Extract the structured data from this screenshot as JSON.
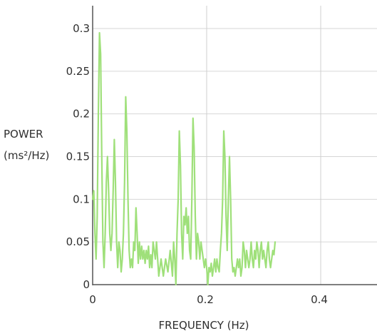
{
  "chart_data": {
    "type": "line",
    "title": "",
    "xlabel": "FREQUENCY (Hz)",
    "ylabel_line1": "POWER",
    "ylabel_line2": "(ms²/Hz)",
    "xlim": [
      0,
      0.5
    ],
    "ylim": [
      0,
      0.3
    ],
    "x_ticks": [
      {
        "value": 0,
        "label": "0"
      },
      {
        "value": 0.2,
        "label": "0.2"
      },
      {
        "value": 0.4,
        "label": "0.4"
      }
    ],
    "y_ticks": [
      {
        "value": 0,
        "label": "0"
      },
      {
        "value": 0.05,
        "label": "0.05"
      },
      {
        "value": 0.1,
        "label": "0.1"
      },
      {
        "value": 0.15,
        "label": "0.15"
      },
      {
        "value": 0.2,
        "label": "0.2"
      },
      {
        "value": 0.25,
        "label": "0.25"
      },
      {
        "value": 0.3,
        "label": "0.3"
      }
    ],
    "grid": true,
    "line_color": "#9fe07a",
    "series": [
      {
        "points": [
          [
            0.0,
            0.1
          ],
          [
            0.002,
            0.11
          ],
          [
            0.004,
            0.06
          ],
          [
            0.006,
            0.03
          ],
          [
            0.008,
            0.08
          ],
          [
            0.01,
            0.2
          ],
          [
            0.012,
            0.295
          ],
          [
            0.014,
            0.27
          ],
          [
            0.016,
            0.15
          ],
          [
            0.018,
            0.05
          ],
          [
            0.02,
            0.02
          ],
          [
            0.022,
            0.06
          ],
          [
            0.024,
            0.12
          ],
          [
            0.026,
            0.15
          ],
          [
            0.028,
            0.11
          ],
          [
            0.03,
            0.06
          ],
          [
            0.032,
            0.04
          ],
          [
            0.034,
            0.06
          ],
          [
            0.036,
            0.11
          ],
          [
            0.038,
            0.17
          ],
          [
            0.04,
            0.12
          ],
          [
            0.042,
            0.05
          ],
          [
            0.044,
            0.02
          ],
          [
            0.046,
            0.05
          ],
          [
            0.048,
            0.04
          ],
          [
            0.05,
            0.015
          ],
          [
            0.052,
            0.03
          ],
          [
            0.054,
            0.06
          ],
          [
            0.056,
            0.12
          ],
          [
            0.058,
            0.22
          ],
          [
            0.06,
            0.18
          ],
          [
            0.062,
            0.1
          ],
          [
            0.064,
            0.04
          ],
          [
            0.066,
            0.02
          ],
          [
            0.068,
            0.03
          ],
          [
            0.07,
            0.02
          ],
          [
            0.072,
            0.05
          ],
          [
            0.074,
            0.04
          ],
          [
            0.076,
            0.09
          ],
          [
            0.078,
            0.06
          ],
          [
            0.08,
            0.025
          ],
          [
            0.082,
            0.05
          ],
          [
            0.084,
            0.03
          ],
          [
            0.086,
            0.045
          ],
          [
            0.088,
            0.03
          ],
          [
            0.09,
            0.04
          ],
          [
            0.092,
            0.025
          ],
          [
            0.094,
            0.04
          ],
          [
            0.096,
            0.03
          ],
          [
            0.098,
            0.045
          ],
          [
            0.1,
            0.02
          ],
          [
            0.102,
            0.035
          ],
          [
            0.104,
            0.02
          ],
          [
            0.106,
            0.05
          ],
          [
            0.108,
            0.04
          ],
          [
            0.11,
            0.03
          ],
          [
            0.112,
            0.05
          ],
          [
            0.114,
            0.03
          ],
          [
            0.116,
            0.01
          ],
          [
            0.118,
            0.02
          ],
          [
            0.12,
            0.03
          ],
          [
            0.124,
            0.01
          ],
          [
            0.128,
            0.03
          ],
          [
            0.132,
            0.015
          ],
          [
            0.136,
            0.04
          ],
          [
            0.14,
            0.01
          ],
          [
            0.142,
            0.05
          ],
          [
            0.144,
            0.03
          ],
          [
            0.146,
            0.0
          ],
          [
            0.148,
            0.06
          ],
          [
            0.15,
            0.1
          ],
          [
            0.152,
            0.18
          ],
          [
            0.154,
            0.14
          ],
          [
            0.156,
            0.06
          ],
          [
            0.158,
            0.03
          ],
          [
            0.16,
            0.08
          ],
          [
            0.162,
            0.07
          ],
          [
            0.164,
            0.09
          ],
          [
            0.166,
            0.06
          ],
          [
            0.168,
            0.08
          ],
          [
            0.17,
            0.04
          ],
          [
            0.172,
            0.03
          ],
          [
            0.174,
            0.1
          ],
          [
            0.176,
            0.195
          ],
          [
            0.178,
            0.16
          ],
          [
            0.18,
            0.08
          ],
          [
            0.182,
            0.03
          ],
          [
            0.184,
            0.06
          ],
          [
            0.186,
            0.05
          ],
          [
            0.188,
            0.03
          ],
          [
            0.19,
            0.05
          ],
          [
            0.192,
            0.04
          ],
          [
            0.194,
            0.03
          ],
          [
            0.196,
            0.02
          ],
          [
            0.198,
            0.03
          ],
          [
            0.2,
            0.02
          ],
          [
            0.202,
            0.0
          ],
          [
            0.204,
            0.02
          ],
          [
            0.206,
            0.015
          ],
          [
            0.208,
            0.025
          ],
          [
            0.21,
            0.01
          ],
          [
            0.212,
            0.02
          ],
          [
            0.214,
            0.03
          ],
          [
            0.216,
            0.015
          ],
          [
            0.218,
            0.03
          ],
          [
            0.22,
            0.02
          ],
          [
            0.222,
            0.015
          ],
          [
            0.224,
            0.04
          ],
          [
            0.226,
            0.06
          ],
          [
            0.228,
            0.1
          ],
          [
            0.23,
            0.18
          ],
          [
            0.232,
            0.15
          ],
          [
            0.234,
            0.08
          ],
          [
            0.236,
            0.04
          ],
          [
            0.238,
            0.1
          ],
          [
            0.24,
            0.15
          ],
          [
            0.242,
            0.1
          ],
          [
            0.244,
            0.03
          ],
          [
            0.246,
            0.015
          ],
          [
            0.248,
            0.02
          ],
          [
            0.25,
            0.01
          ],
          [
            0.252,
            0.02
          ],
          [
            0.254,
            0.03
          ],
          [
            0.256,
            0.02
          ],
          [
            0.258,
            0.03
          ],
          [
            0.26,
            0.01
          ],
          [
            0.262,
            0.02
          ],
          [
            0.264,
            0.05
          ],
          [
            0.266,
            0.04
          ],
          [
            0.268,
            0.02
          ],
          [
            0.27,
            0.04
          ],
          [
            0.272,
            0.03
          ],
          [
            0.274,
            0.02
          ],
          [
            0.276,
            0.03
          ],
          [
            0.278,
            0.05
          ],
          [
            0.28,
            0.03
          ],
          [
            0.282,
            0.02
          ],
          [
            0.284,
            0.04
          ],
          [
            0.286,
            0.03
          ],
          [
            0.288,
            0.05
          ],
          [
            0.29,
            0.04
          ],
          [
            0.292,
            0.02
          ],
          [
            0.294,
            0.04
          ],
          [
            0.296,
            0.05
          ],
          [
            0.298,
            0.03
          ],
          [
            0.3,
            0.04
          ],
          [
            0.302,
            0.03
          ],
          [
            0.304,
            0.02
          ],
          [
            0.306,
            0.04
          ],
          [
            0.308,
            0.05
          ],
          [
            0.31,
            0.03
          ],
          [
            0.312,
            0.02
          ],
          [
            0.314,
            0.03
          ],
          [
            0.316,
            0.04
          ],
          [
            0.318,
            0.035
          ],
          [
            0.32,
            0.05
          ]
        ]
      }
    ]
  }
}
